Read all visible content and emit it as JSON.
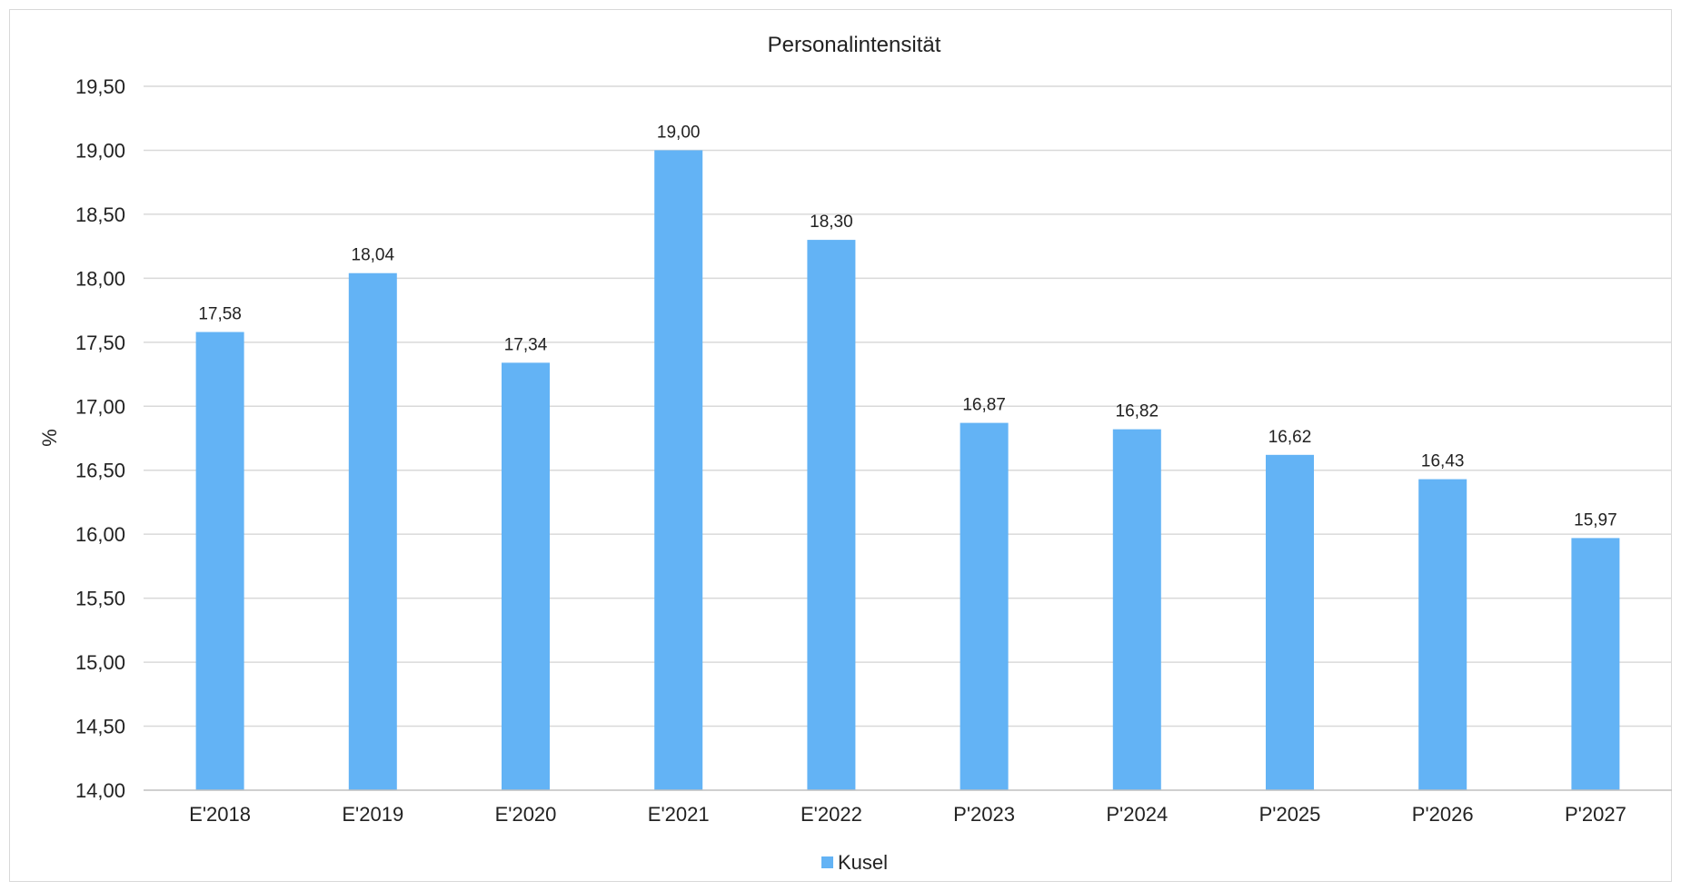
{
  "chart_data": {
    "type": "bar",
    "title": "Personalintensität",
    "xlabel": "",
    "ylabel": "%",
    "ylim": [
      14.0,
      19.5
    ],
    "ytick_step": 0.5,
    "ytick_labels": [
      "14,00",
      "14,50",
      "15,00",
      "15,50",
      "16,00",
      "16,50",
      "17,00",
      "17,50",
      "18,00",
      "18,50",
      "19,00",
      "19,50"
    ],
    "categories": [
      "E'2018",
      "E'2019",
      "E'2020",
      "E'2021",
      "E'2022",
      "P'2023",
      "P'2024",
      "P'2025",
      "P'2026",
      "P'2027"
    ],
    "series": [
      {
        "name": "Kusel",
        "color": "#63b3f5",
        "values": [
          17.58,
          18.04,
          17.34,
          19.0,
          18.3,
          16.87,
          16.82,
          16.62,
          16.43,
          15.97
        ],
        "data_labels": [
          "17,58",
          "18,04",
          "17,34",
          "19,00",
          "18,30",
          "16,87",
          "16,82",
          "16,62",
          "16,43",
          "15,97"
        ]
      }
    ],
    "grid": true,
    "legend": "bottom-center"
  }
}
